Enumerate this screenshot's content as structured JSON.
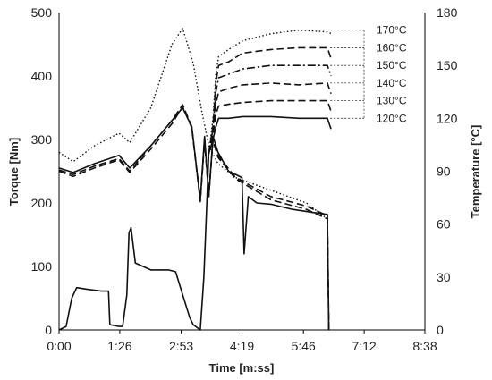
{
  "chart_data": {
    "type": "line",
    "title": "",
    "xlabel": "Time [m:ss]",
    "ylabel_left": "Torque [Nm]",
    "ylabel_right": "Temperature [°C]",
    "x_unit": "seconds",
    "xlim": [
      0,
      518
    ],
    "ylim_left": [
      0,
      500
    ],
    "ylim_right": [
      0,
      180
    ],
    "x_ticks": [
      {
        "value": 0,
        "label": "0:00"
      },
      {
        "value": 86,
        "label": "1:26"
      },
      {
        "value": 173,
        "label": "2:53"
      },
      {
        "value": 259,
        "label": "4:19"
      },
      {
        "value": 346,
        "label": "5:46"
      },
      {
        "value": 432,
        "label": "7:12"
      },
      {
        "value": 518,
        "label": "8:38"
      }
    ],
    "y_ticks_left": [
      {
        "value": 0,
        "label": "0"
      },
      {
        "value": 100,
        "label": "100"
      },
      {
        "value": 200,
        "label": "200"
      },
      {
        "value": 300,
        "label": "300"
      },
      {
        "value": 400,
        "label": "400"
      },
      {
        "value": 500,
        "label": "500"
      }
    ],
    "y_ticks_right": [
      {
        "value": 0,
        "label": "0"
      },
      {
        "value": 30,
        "label": "30"
      },
      {
        "value": 60,
        "label": "60"
      },
      {
        "value": 90,
        "label": "90"
      },
      {
        "value": 120,
        "label": "120"
      },
      {
        "value": 150,
        "label": "150"
      },
      {
        "value": 180,
        "label": "180"
      }
    ],
    "grid": false,
    "legend": "none",
    "series": [
      {
        "name": "170°C",
        "axis": "torque",
        "style": "dotted",
        "points": [
          [
            0,
            280
          ],
          [
            20,
            265
          ],
          [
            50,
            290
          ],
          [
            85,
            310
          ],
          [
            100,
            295
          ],
          [
            130,
            350
          ],
          [
            160,
            450
          ],
          [
            175,
            475
          ],
          [
            190,
            420
          ],
          [
            202,
            345
          ],
          [
            212,
            290
          ],
          [
            225,
            262
          ],
          [
            250,
            240
          ],
          [
            300,
            220
          ],
          [
            350,
            200
          ],
          [
            380,
            175
          ],
          [
            382,
            0
          ]
        ]
      },
      {
        "name": "120°C",
        "axis": "torque",
        "style": "solid",
        "points": [
          [
            0,
            255
          ],
          [
            20,
            248
          ],
          [
            50,
            262
          ],
          [
            85,
            275
          ],
          [
            100,
            255
          ],
          [
            130,
            290
          ],
          [
            160,
            330
          ],
          [
            175,
            350
          ],
          [
            188,
            320
          ],
          [
            200,
            205
          ],
          [
            206,
            305
          ],
          [
            212,
            210
          ],
          [
            218,
            305
          ],
          [
            225,
            280
          ],
          [
            240,
            250
          ],
          [
            250,
            245
          ],
          [
            259,
            240
          ],
          [
            262,
            120
          ],
          [
            268,
            210
          ],
          [
            280,
            200
          ],
          [
            300,
            198
          ],
          [
            330,
            190
          ],
          [
            360,
            185
          ],
          [
            380,
            182
          ],
          [
            382,
            0
          ]
        ]
      },
      {
        "name": "130°C",
        "axis": "torque",
        "style": "dashed",
        "points": [
          [
            0,
            252
          ],
          [
            20,
            245
          ],
          [
            50,
            258
          ],
          [
            85,
            270
          ],
          [
            100,
            250
          ],
          [
            130,
            290
          ],
          [
            160,
            330
          ],
          [
            175,
            355
          ],
          [
            188,
            320
          ],
          [
            200,
            205
          ],
          [
            206,
            300
          ],
          [
            212,
            212
          ],
          [
            218,
            300
          ],
          [
            225,
            275
          ],
          [
            250,
            240
          ],
          [
            300,
            210
          ],
          [
            350,
            195
          ],
          [
            380,
            180
          ],
          [
            382,
            0
          ]
        ]
      },
      {
        "name": "140°C",
        "axis": "torque",
        "style": "dashed",
        "points": [
          [
            0,
            250
          ],
          [
            20,
            242
          ],
          [
            50,
            255
          ],
          [
            85,
            268
          ],
          [
            100,
            248
          ],
          [
            130,
            285
          ],
          [
            160,
            325
          ],
          [
            175,
            352
          ],
          [
            188,
            318
          ],
          [
            200,
            202
          ],
          [
            206,
            298
          ],
          [
            212,
            210
          ],
          [
            218,
            298
          ],
          [
            225,
            272
          ],
          [
            250,
            238
          ],
          [
            300,
            205
          ],
          [
            350,
            190
          ],
          [
            380,
            175
          ],
          [
            382,
            0
          ]
        ]
      },
      {
        "name": "120°C",
        "axis": "temperature",
        "style": "solid",
        "points": [
          [
            0,
            0
          ],
          [
            10,
            2
          ],
          [
            18,
            18
          ],
          [
            25,
            24
          ],
          [
            40,
            23
          ],
          [
            60,
            22
          ],
          [
            70,
            22
          ],
          [
            72,
            3
          ],
          [
            85,
            2
          ],
          [
            90,
            2
          ],
          [
            96,
            20
          ],
          [
            99,
            55
          ],
          [
            102,
            58
          ],
          [
            108,
            38
          ],
          [
            130,
            34
          ],
          [
            155,
            34
          ],
          [
            165,
            33
          ],
          [
            175,
            20
          ],
          [
            185,
            7
          ],
          [
            190,
            3
          ],
          [
            200,
            0
          ],
          [
            205,
            30
          ],
          [
            212,
            100
          ],
          [
            218,
            108
          ],
          [
            222,
            115
          ],
          [
            226,
            120
          ],
          [
            240,
            120
          ],
          [
            260,
            121
          ],
          [
            300,
            121
          ],
          [
            340,
            120
          ],
          [
            380,
            120
          ],
          [
            385,
            114
          ]
        ]
      },
      {
        "name": "130°C",
        "axis": "temperature",
        "style": "dashed",
        "points": [
          [
            212,
            100
          ],
          [
            218,
            110
          ],
          [
            222,
            122
          ],
          [
            226,
            127
          ],
          [
            240,
            128
          ],
          [
            260,
            129
          ],
          [
            300,
            130
          ],
          [
            340,
            130
          ],
          [
            380,
            130
          ],
          [
            385,
            124
          ]
        ]
      },
      {
        "name": "140°C",
        "axis": "temperature",
        "style": "dashed",
        "points": [
          [
            212,
            100
          ],
          [
            218,
            112
          ],
          [
            222,
            128
          ],
          [
            226,
            135
          ],
          [
            240,
            137
          ],
          [
            260,
            139
          ],
          [
            300,
            140
          ],
          [
            340,
            139
          ],
          [
            380,
            140
          ],
          [
            385,
            134
          ]
        ]
      },
      {
        "name": "150°C",
        "axis": "temperature",
        "style": "dashdot",
        "points": [
          [
            212,
            100
          ],
          [
            218,
            114
          ],
          [
            222,
            135
          ],
          [
            226,
            143
          ],
          [
            240,
            145
          ],
          [
            260,
            148
          ],
          [
            300,
            150
          ],
          [
            340,
            150
          ],
          [
            380,
            150
          ],
          [
            385,
            144
          ]
        ]
      },
      {
        "name": "160°C",
        "axis": "temperature",
        "style": "dashed",
        "points": [
          [
            212,
            100
          ],
          [
            218,
            116
          ],
          [
            222,
            140
          ],
          [
            226,
            150
          ],
          [
            240,
            152
          ],
          [
            260,
            157
          ],
          [
            300,
            159
          ],
          [
            340,
            160
          ],
          [
            380,
            160
          ],
          [
            385,
            154
          ]
        ]
      },
      {
        "name": "170°C",
        "axis": "temperature",
        "style": "dotted",
        "points": [
          [
            212,
            100
          ],
          [
            218,
            120
          ],
          [
            222,
            145
          ],
          [
            226,
            155
          ],
          [
            240,
            159
          ],
          [
            260,
            164
          ],
          [
            300,
            168
          ],
          [
            340,
            170
          ],
          [
            380,
            169
          ],
          [
            386,
            168
          ]
        ]
      }
    ],
    "annotations": [
      "170°C",
      "160°C",
      "150°C",
      "140°C",
      "130°C",
      "120°C"
    ]
  }
}
